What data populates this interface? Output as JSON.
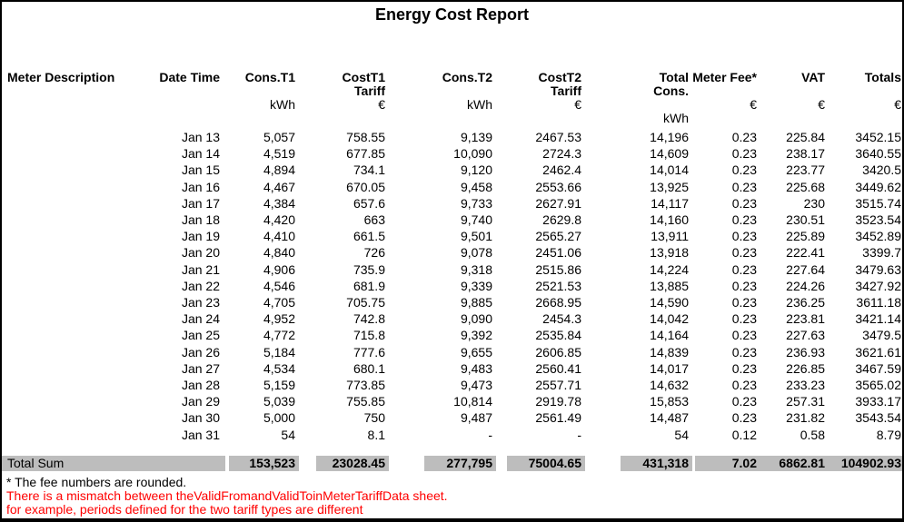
{
  "title": "Energy Cost Report",
  "table": {
    "columns": [
      {
        "id": "meter_description",
        "label": "Meter Description",
        "unit": ""
      },
      {
        "id": "date_time",
        "label": "Date Time",
        "unit": ""
      },
      {
        "id": "cons_t1",
        "label": "Cons.T1",
        "unit": "kWh"
      },
      {
        "id": "cost_t1_tariff",
        "label": "CostT1\nTariff",
        "unit": "€"
      },
      {
        "id": "cons_t2",
        "label": "Cons.T2",
        "unit": "kWh"
      },
      {
        "id": "cost_t2_tariff",
        "label": "CostT2\nTariff",
        "unit": "€"
      },
      {
        "id": "total_cons",
        "label": "Total\nCons.",
        "unit": "\nkWh"
      },
      {
        "id": "meter_fee",
        "label": "Meter Fee*",
        "unit": "€"
      },
      {
        "id": "vat",
        "label": "VAT",
        "unit": "€"
      },
      {
        "id": "totals",
        "label": "Totals",
        "unit": "€"
      }
    ],
    "rows": [
      [
        "Jan 13",
        "5,057",
        "758.55",
        "9,139",
        "2467.53",
        "14,196",
        "0.23",
        "225.84",
        "3452.15"
      ],
      [
        "Jan 14",
        "4,519",
        "677.85",
        "10,090",
        "2724.3",
        "14,609",
        "0.23",
        "238.17",
        "3640.55"
      ],
      [
        "Jan 15",
        "4,894",
        "734.1",
        "9,120",
        "2462.4",
        "14,014",
        "0.23",
        "223.77",
        "3420.5"
      ],
      [
        "Jan 16",
        "4,467",
        "670.05",
        "9,458",
        "2553.66",
        "13,925",
        "0.23",
        "225.68",
        "3449.62"
      ],
      [
        "Jan 17",
        "4,384",
        "657.6",
        "9,733",
        "2627.91",
        "14,117",
        "0.23",
        "230",
        "3515.74"
      ],
      [
        "Jan 18",
        "4,420",
        "663",
        "9,740",
        "2629.8",
        "14,160",
        "0.23",
        "230.51",
        "3523.54"
      ],
      [
        "Jan 19",
        "4,410",
        "661.5",
        "9,501",
        "2565.27",
        "13,911",
        "0.23",
        "225.89",
        "3452.89"
      ],
      [
        "Jan 20",
        "4,840",
        "726",
        "9,078",
        "2451.06",
        "13,918",
        "0.23",
        "222.41",
        "3399.7"
      ],
      [
        "Jan 21",
        "4,906",
        "735.9",
        "9,318",
        "2515.86",
        "14,224",
        "0.23",
        "227.64",
        "3479.63"
      ],
      [
        "Jan 22",
        "4,546",
        "681.9",
        "9,339",
        "2521.53",
        "13,885",
        "0.23",
        "224.26",
        "3427.92"
      ],
      [
        "Jan 23",
        "4,705",
        "705.75",
        "9,885",
        "2668.95",
        "14,590",
        "0.23",
        "236.25",
        "3611.18"
      ],
      [
        "Jan 24",
        "4,952",
        "742.8",
        "9,090",
        "2454.3",
        "14,042",
        "0.23",
        "223.81",
        "3421.14"
      ],
      [
        "Jan 25",
        "4,772",
        "715.8",
        "9,392",
        "2535.84",
        "14,164",
        "0.23",
        "227.63",
        "3479.5"
      ],
      [
        "Jan 26",
        "5,184",
        "777.6",
        "9,655",
        "2606.85",
        "14,839",
        "0.23",
        "236.93",
        "3621.61"
      ],
      [
        "Jan 27",
        "4,534",
        "680.1",
        "9,483",
        "2560.41",
        "14,017",
        "0.23",
        "226.85",
        "3467.59"
      ],
      [
        "Jan 28",
        "5,159",
        "773.85",
        "9,473",
        "2557.71",
        "14,632",
        "0.23",
        "233.23",
        "3565.02"
      ],
      [
        "Jan 29",
        "5,039",
        "755.85",
        "10,814",
        "2919.78",
        "15,853",
        "0.23",
        "257.31",
        "3933.17"
      ],
      [
        "Jan 30",
        "5,000",
        "750",
        "9,487",
        "2561.49",
        "14,487",
        "0.23",
        "231.82",
        "3543.54"
      ],
      [
        "Jan 31",
        "54",
        "8.1",
        "-",
        "-",
        "54",
        "0.12",
        "0.58",
        "8.79"
      ]
    ]
  },
  "total_row": {
    "label": "Total Sum",
    "values": [
      "153,523",
      "23028.45",
      "277,795",
      "75004.65",
      "431,318",
      "7.02",
      "6862.81",
      "104902.93"
    ]
  },
  "footnotes": {
    "fee_note": "* The fee numbers are rounded.",
    "warning_line1": "There is a mismatch between theValidFromandValidToinMeterTariffData sheet.",
    "warning_line2": "for example, periods defined for the two tariff types are different"
  },
  "colors": {
    "total_band": "#BDBDBD",
    "warning_text": "#FF0000"
  }
}
